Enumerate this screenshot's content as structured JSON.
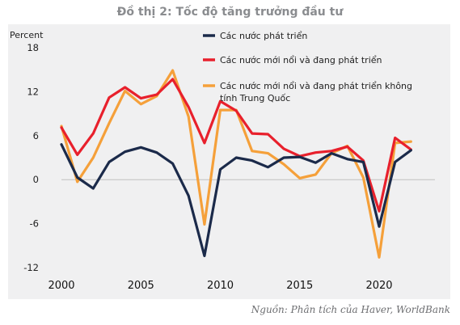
{
  "figure": {
    "title": "Đồ thị 2: Tốc độ tăng trưởng đầu tư",
    "source": "Nguồn: Phân tích của Haver, WorldBank"
  },
  "chart_data": {
    "type": "line",
    "title": "Đồ thị 2: Tốc độ tăng trưởng đầu tư",
    "ylabel": "Percent",
    "xlabel": "",
    "ylim": [
      -12,
      18
    ],
    "xlim": [
      2000,
      2023
    ],
    "y_ticks": [
      18,
      12,
      6,
      0,
      -6,
      -12
    ],
    "x_ticks": [
      2000,
      2005,
      2010,
      2015,
      2020
    ],
    "grid": false,
    "legend_position": "top-right",
    "x": [
      2000,
      2001,
      2002,
      2003,
      2004,
      2005,
      2006,
      2007,
      2008,
      2009,
      2010,
      2011,
      2012,
      2013,
      2014,
      2015,
      2016,
      2017,
      2018,
      2019,
      2020,
      2021,
      2022
    ],
    "series": [
      {
        "name": "Các nước phát triển",
        "color": "#1b2a4a",
        "values": [
          4.8,
          0.3,
          -1.2,
          2.4,
          3.8,
          4.4,
          3.7,
          2.2,
          -2.2,
          -10.4,
          1.4,
          3.0,
          2.6,
          1.7,
          3.0,
          3.1,
          2.3,
          3.6,
          2.8,
          2.4,
          -6.4,
          2.4,
          4.0
        ]
      },
      {
        "name": "Các nước mới nổi và đang phát triển",
        "color": "#e8202c",
        "values": [
          7.1,
          3.4,
          6.3,
          11.2,
          12.6,
          11.1,
          11.6,
          13.7,
          9.9,
          5.0,
          10.7,
          9.4,
          6.3,
          6.2,
          4.2,
          3.2,
          3.7,
          3.9,
          4.5,
          2.6,
          -4.3,
          5.7,
          4.1
        ]
      },
      {
        "name": "Các nước mới nổi và đang phát triển không tính Trung Quốc",
        "color": "#f5a03a",
        "values": [
          7.3,
          -0.3,
          3.0,
          7.7,
          12.1,
          10.3,
          11.4,
          14.9,
          8.6,
          -6.1,
          9.5,
          9.5,
          3.9,
          3.6,
          2.1,
          0.2,
          0.7,
          3.6,
          4.6,
          0.3,
          -10.6,
          5.0,
          5.2
        ]
      }
    ]
  }
}
